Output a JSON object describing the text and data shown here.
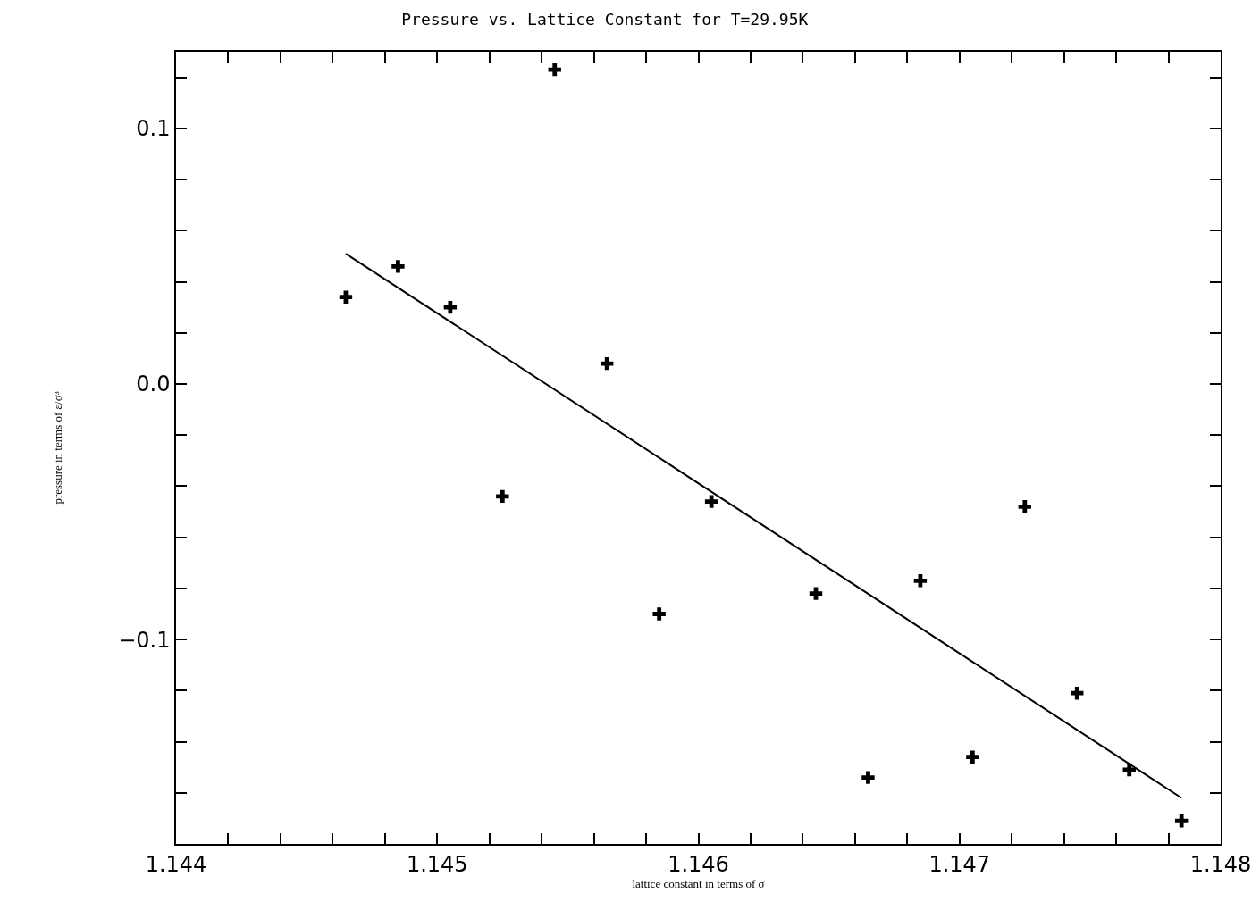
{
  "chart_data": {
    "type": "scatter",
    "title": "Pressure vs. Lattice Constant for T=29.95K",
    "xlabel": "lattice constant in terms of σ",
    "ylabel": "pressure in terms of ε/σ³",
    "xlim": [
      1.144,
      1.148
    ],
    "ylim": [
      -0.18,
      0.13
    ],
    "xticks": [
      1.144,
      {
        "value": 1.1442,
        "label": null
      },
      {
        "value": 1.1444,
        "label": null
      },
      {
        "value": 1.1446,
        "label": null
      },
      {
        "value": 1.1448,
        "label": null
      },
      1.145,
      {
        "value": 1.1452,
        "label": null
      },
      {
        "value": 1.1454,
        "label": null
      },
      {
        "value": 1.1456,
        "label": null
      },
      {
        "value": 1.1458,
        "label": null
      },
      1.146,
      {
        "value": 1.1462,
        "label": null
      },
      {
        "value": 1.1464,
        "label": null
      },
      {
        "value": 1.1466,
        "label": null
      },
      {
        "value": 1.1468,
        "label": null
      },
      1.147,
      {
        "value": 1.1472,
        "label": null
      },
      {
        "value": 1.1474,
        "label": null
      },
      {
        "value": 1.1476,
        "label": null
      },
      {
        "value": 1.1478,
        "label": null
      },
      1.148
    ],
    "yticks": [
      {
        "value": -0.16,
        "label": null
      },
      {
        "value": -0.14,
        "label": null
      },
      {
        "value": -0.12,
        "label": null
      },
      {
        "value": -0.1,
        "label": "−0.1"
      },
      {
        "value": -0.08,
        "label": null
      },
      {
        "value": -0.06,
        "label": null
      },
      {
        "value": -0.04,
        "label": null
      },
      {
        "value": -0.02,
        "label": null
      },
      {
        "value": 0,
        "label": "0.0"
      },
      {
        "value": 0.02,
        "label": null
      },
      {
        "value": 0.04,
        "label": null
      },
      {
        "value": 0.06,
        "label": null
      },
      {
        "value": 0.08,
        "label": null
      },
      {
        "value": 0.1,
        "label": "0.1"
      },
      {
        "value": 0.12,
        "label": null
      }
    ],
    "grid": false,
    "series": [
      {
        "type": "scatter",
        "marker": "cross",
        "color": "#000000",
        "x": [
          1.14465,
          1.14485,
          1.14505,
          1.14525,
          1.14545,
          1.14565,
          1.14585,
          1.14605,
          1.14645,
          1.14665,
          1.14685,
          1.14705,
          1.14725,
          1.14745,
          1.14765,
          1.14785
        ],
        "values": [
          0.034,
          0.046,
          0.03,
          -0.044,
          0.123,
          0.008,
          -0.09,
          -0.046,
          -0.082,
          -0.154,
          -0.077,
          -0.146,
          -0.048,
          -0.121,
          -0.151,
          -0.171
        ]
      },
      {
        "type": "line",
        "marker": "none",
        "line_style": "solid",
        "color": "#000000",
        "x": [
          1.14465,
          1.14785
        ],
        "values": [
          0.051,
          -0.162
        ]
      }
    ]
  }
}
